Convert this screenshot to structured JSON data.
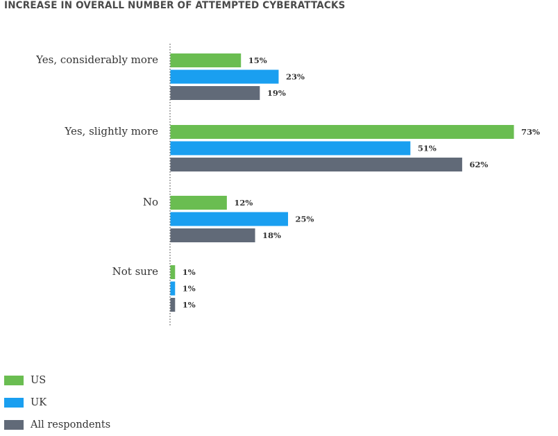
{
  "chart_data": {
    "type": "bar",
    "orientation": "horizontal",
    "title": "INCREASE IN OVERALL NUMBER OF ATTEMPTED CYBERATTACKS",
    "categories": [
      "Yes, considerably more",
      "Yes, slightly more",
      "No",
      "Not sure"
    ],
    "series": [
      {
        "name": "US",
        "color": "#6abd51",
        "values": [
          15,
          73,
          12,
          1
        ]
      },
      {
        "name": "UK",
        "color": "#1a9ff0",
        "values": [
          23,
          51,
          25,
          1
        ]
      },
      {
        "name": "All respondents",
        "color": "#616a78",
        "values": [
          19,
          62,
          18,
          1
        ]
      }
    ],
    "value_suffix": "%",
    "xlim": [
      0,
      75
    ],
    "grid": false,
    "legend_position": "bottom-left"
  }
}
